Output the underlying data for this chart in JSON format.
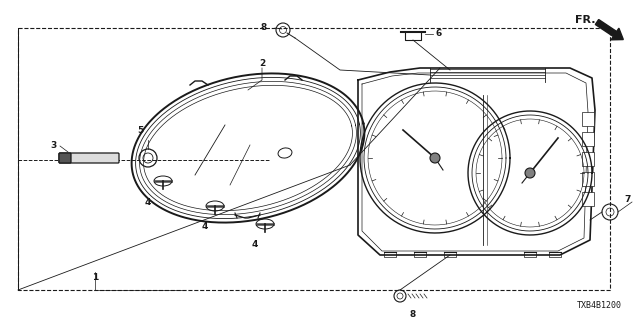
{
  "bg_color": "#ffffff",
  "line_color": "#1a1a1a",
  "diagram_code": "TXB4B1200",
  "fig_w": 6.4,
  "fig_h": 3.2,
  "dpi": 100
}
